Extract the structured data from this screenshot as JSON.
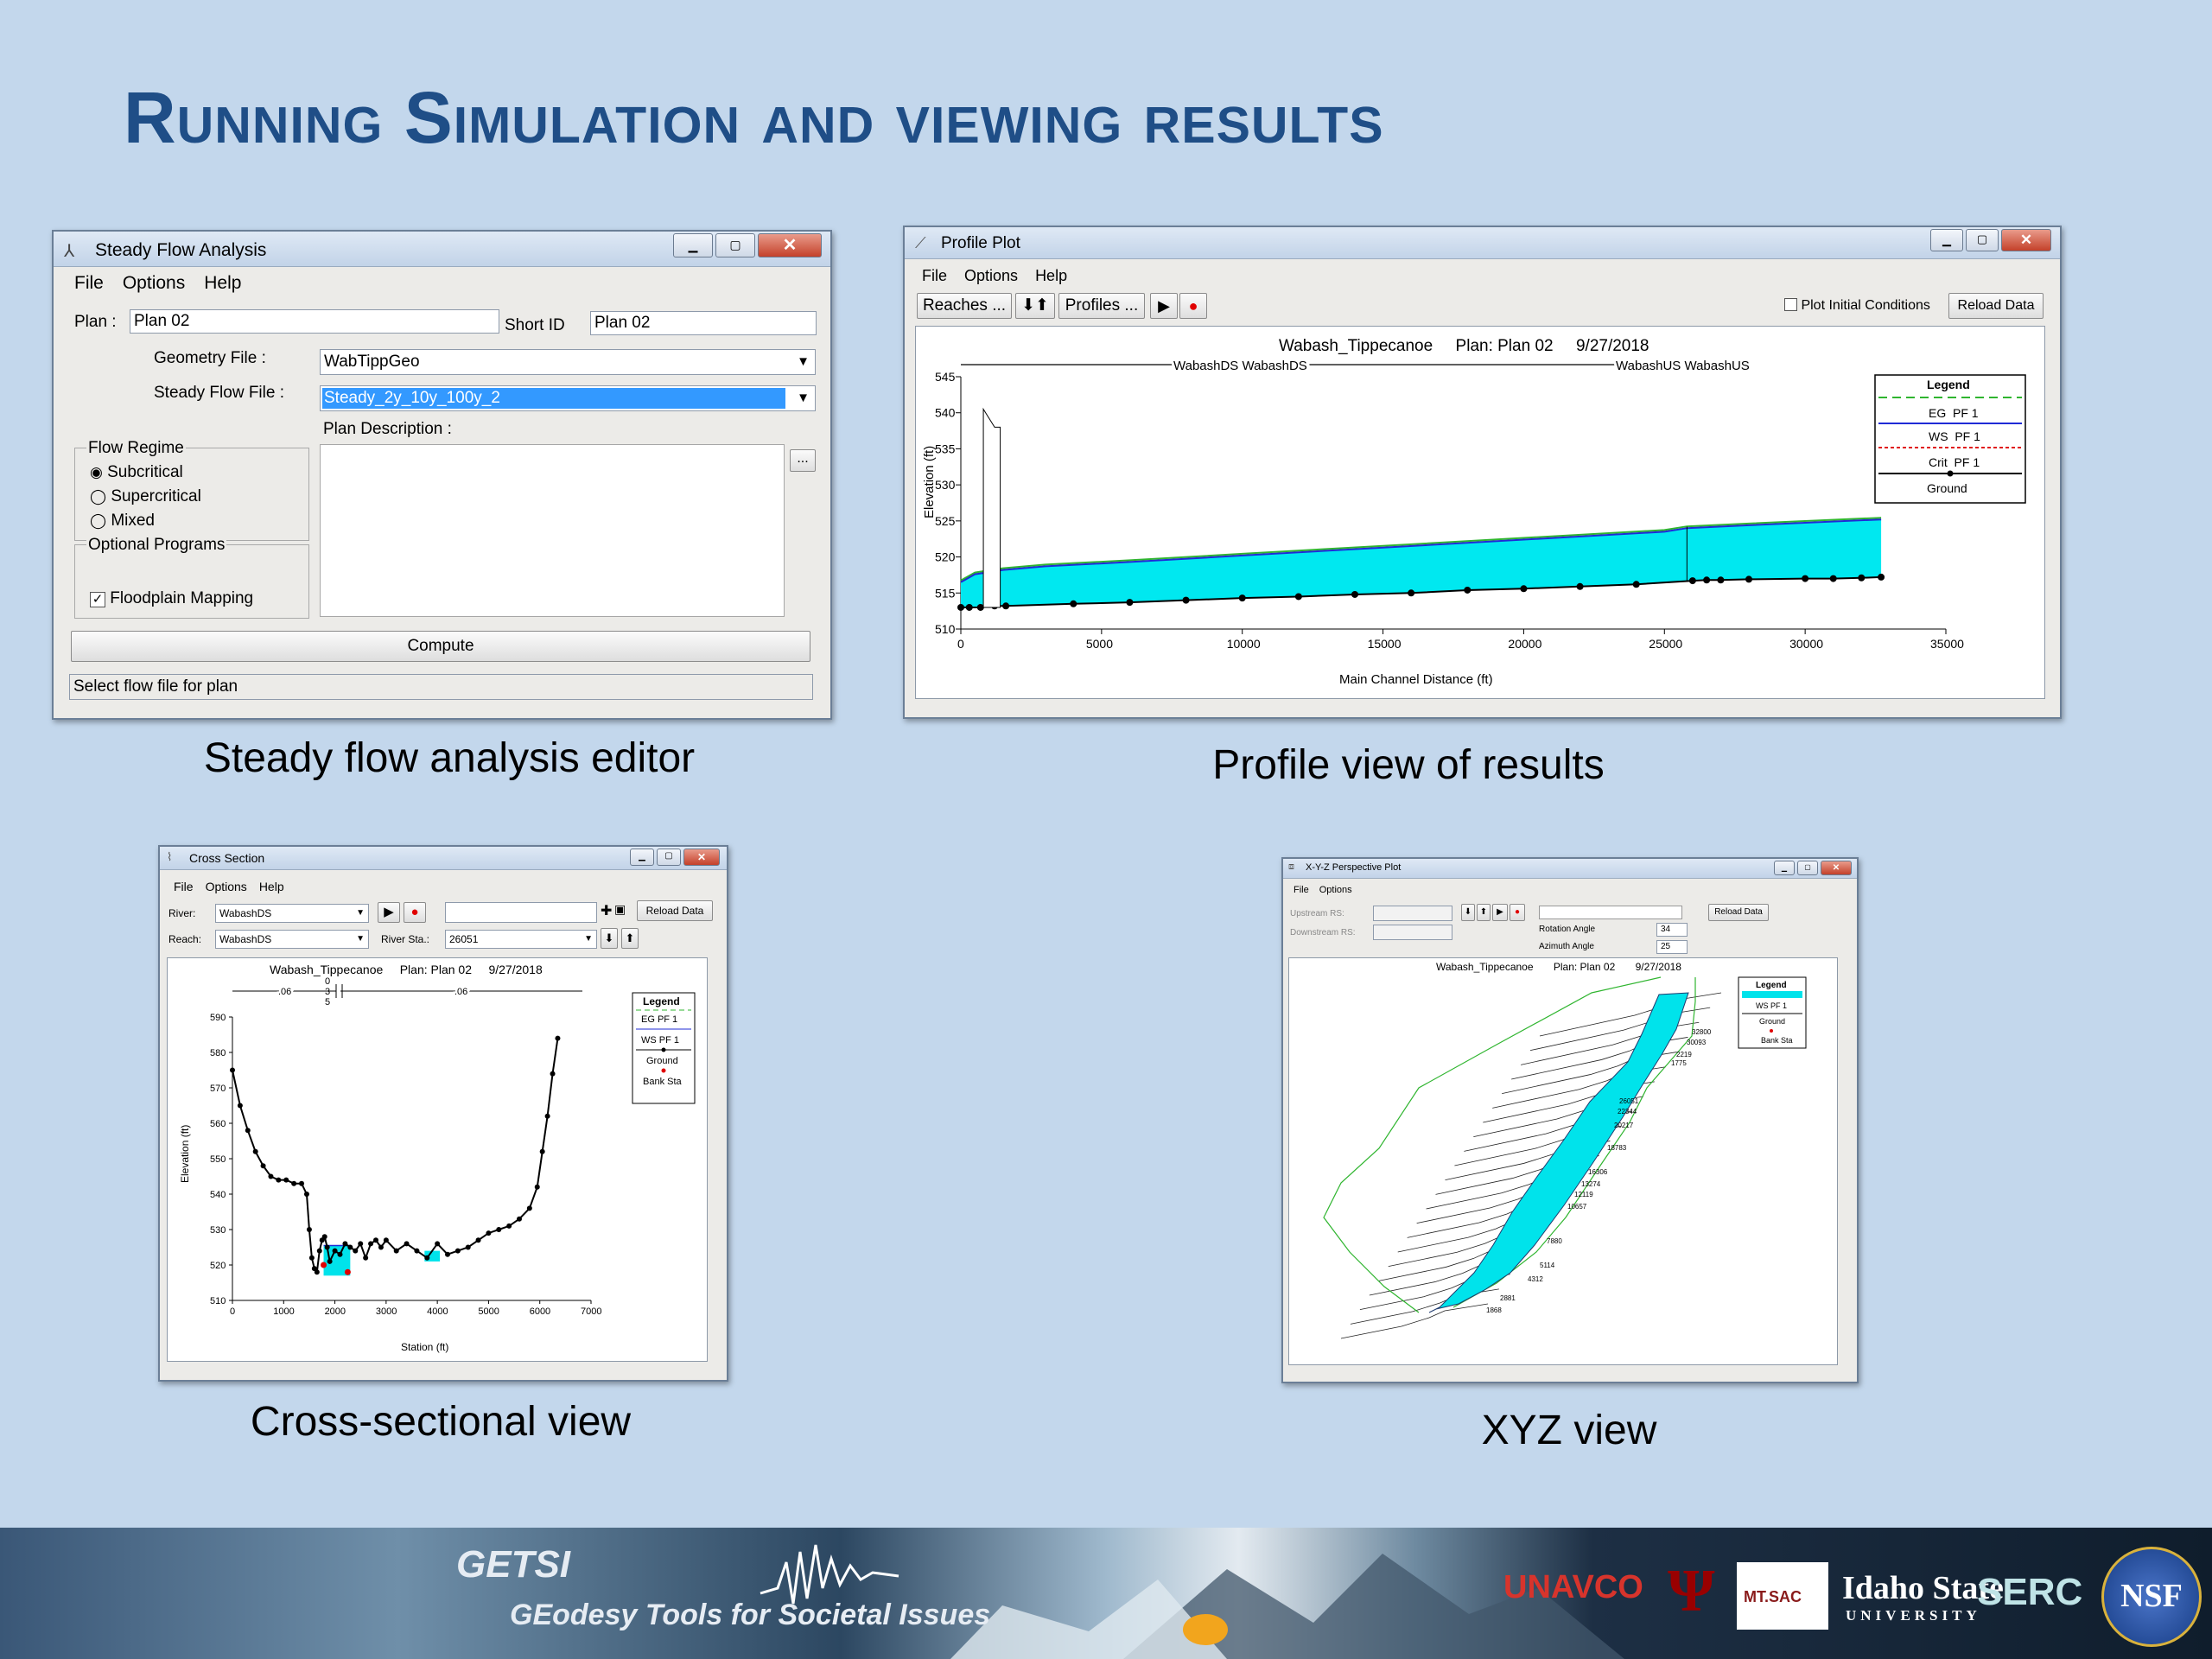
{
  "slide": {
    "title": "Running Simulation and viewing results",
    "captions": {
      "steady": "Steady flow analysis editor",
      "profile": "Profile view of results",
      "cross": "Cross-sectional view",
      "xyz": "XYZ view"
    }
  },
  "steady_window": {
    "title": "Steady Flow Analysis",
    "menu": [
      "File",
      "Options",
      "Help"
    ],
    "plan_label": "Plan :",
    "plan_value": "Plan 02",
    "short_id_label": "Short ID",
    "short_id_value": "Plan 02",
    "geometry_label": "Geometry File :",
    "geometry_value": "WabTippGeo",
    "flow_label": "Steady Flow File :",
    "flow_value": "Steady_2y_10y_100y_2",
    "plan_desc_label": "Plan Description :",
    "desc_button": "...",
    "flow_regime_label": "Flow Regime",
    "regimes": [
      "Subcritical",
      "Supercritical",
      "Mixed"
    ],
    "selected_regime": "Subcritical",
    "optional_label": "Optional Programs",
    "floodplain_label": "Floodplain Mapping",
    "floodplain_checked": true,
    "compute_label": "Compute",
    "status": "Select flow file for plan"
  },
  "profile_window": {
    "title": "Profile Plot",
    "menu": [
      "File",
      "Options",
      "Help"
    ],
    "reaches_label": "Reaches ...",
    "profiles_label": "Profiles ...",
    "initial_conditions_label": "Plot Initial Conditions",
    "reload_label": "Reload Data",
    "heading": "Wabash_Tippecanoe     Plan: Plan 02     9/27/2018",
    "reach_ds_label": "WabashDS WabashDS",
    "reach_us_label": "WabashUS WabashUS",
    "legend_title": "Legend",
    "legend_items": [
      "EG  PF 1",
      "WS  PF 1",
      "Crit  PF 1",
      "Ground"
    ],
    "colors": {
      "ws_fill": "#00e8f0",
      "eg_line": "#2fb52f",
      "ws_line": "#1f2bd6",
      "crit": "#e01b1b"
    }
  },
  "cross_window": {
    "title": "Cross Section",
    "menu": [
      "File",
      "Options",
      "Help"
    ],
    "river_label": "River:",
    "river_value": "WabashDS",
    "reach_label": "Reach:",
    "reach_value": "WabashDS",
    "river_sta_label": "River Sta.:",
    "river_sta_value": "26051",
    "reload_label": "Reload Data",
    "heading": "Wabash_Tippecanoe     Plan: Plan 02     9/27/2018",
    "manning": [
      ".06",
      "0\n3\n5",
      ".06"
    ],
    "legend_title": "Legend",
    "legend_items": [
      "EG PF 1",
      "WS PF 1",
      "Ground",
      "Bank Sta"
    ]
  },
  "xyz_window": {
    "title": "X-Y-Z Perspective Plot",
    "menu": [
      "File",
      "Options"
    ],
    "upstream_label": "Upstream RS:",
    "downstream_label": "Downstream RS:",
    "rotation_label": "Rotation Angle",
    "rotation_value": "34",
    "azimuth_label": "Azimuth Angle",
    "azimuth_value": "25",
    "reload_label": "Reload Data",
    "heading": "Wabash_Tippecanoe       Plan: Plan 02       9/27/2018",
    "legend_title": "Legend",
    "legend_items": [
      "WS PF 1",
      "Ground",
      "Bank Sta"
    ],
    "station_labels": [
      "32800",
      "30093",
      "2219",
      "1775",
      "26051",
      "22344",
      "20217",
      "18783",
      "16306",
      "13274",
      "12119",
      "10657",
      "7880",
      "5114",
      "4312",
      "2881",
      "1868"
    ]
  },
  "footer": {
    "getsi": "GETSI",
    "getsi_sub": "GEodesy Tools for Societal Issues",
    "unavco": "UNAVCO",
    "mtsac": "MT.SAC",
    "idaho": "Idaho State",
    "idaho_sub": "UNIVERSITY",
    "serc": "SERC",
    "nsf": "NSF"
  },
  "chart_data": [
    {
      "type": "area",
      "title": "Wabash_Tippecanoe     Plan: Plan 02     9/27/2018",
      "xlabel": "Main Channel Distance (ft)",
      "ylabel": "Elevation (ft)",
      "xlim": [
        0,
        35000
      ],
      "ylim": [
        510,
        545
      ],
      "xticks": [
        0,
        5000,
        10000,
        15000,
        20000,
        25000,
        30000,
        35000
      ],
      "yticks": [
        510,
        515,
        520,
        525,
        530,
        535,
        540,
        545
      ],
      "legend": "right",
      "series": [
        {
          "name": "WS  PF 1",
          "x": [
            0,
            500,
            1500,
            3000,
            6000,
            10000,
            15000,
            20000,
            25000,
            25800,
            28000,
            32700
          ],
          "y": [
            516.5,
            517.6,
            518.2,
            518.7,
            519.3,
            520.2,
            521.3,
            522.4,
            523.5,
            524.0,
            524.4,
            525.2
          ]
        },
        {
          "name": "Ground",
          "x": [
            0,
            300,
            700,
            1200,
            1600,
            4000,
            6000,
            8000,
            10000,
            12000,
            14000,
            16000,
            18000,
            20000,
            22000,
            24000,
            26000,
            26500,
            27000,
            28000,
            30000,
            31000,
            32000,
            32700
          ],
          "y": [
            513,
            513,
            513,
            513.2,
            513.2,
            513.5,
            513.7,
            514,
            514.3,
            514.5,
            514.8,
            515,
            515.4,
            515.6,
            515.9,
            516.2,
            516.7,
            516.8,
            516.8,
            516.9,
            517,
            517,
            517.1,
            517.2
          ]
        }
      ]
    },
    {
      "type": "scatter",
      "title": "Wabash_Tippecanoe     Plan: Plan 02     9/27/2018",
      "xlabel": "Station (ft)",
      "ylabel": "Elevation (ft)",
      "xlim": [
        0,
        7000
      ],
      "ylim": [
        510,
        590
      ],
      "xticks": [
        0,
        1000,
        2000,
        3000,
        4000,
        5000,
        6000,
        7000
      ],
      "yticks": [
        510,
        520,
        530,
        540,
        550,
        560,
        570,
        580,
        590
      ],
      "legend": "right",
      "series": [
        {
          "name": "Ground",
          "x": [
            0,
            150,
            300,
            450,
            600,
            750,
            900,
            1050,
            1200,
            1350,
            1450,
            1500,
            1550,
            1600,
            1650,
            1700,
            1750,
            1800,
            1850,
            1900,
            2000,
            2100,
            2200,
            2300,
            2400,
            2500,
            2600,
            2700,
            2800,
            2900,
            3000,
            3200,
            3400,
            3600,
            3800,
            4000,
            4200,
            4400,
            4600,
            4800,
            5000,
            5200,
            5400,
            5600,
            5800,
            5950,
            6050,
            6150,
            6250,
            6350
          ],
          "y": [
            575,
            565,
            558,
            552,
            548,
            545,
            544,
            544,
            543,
            543,
            540,
            530,
            522,
            519,
            518,
            524,
            527,
            528,
            525,
            521,
            524,
            523,
            526,
            525,
            524,
            526,
            522,
            526,
            527,
            525,
            527,
            524,
            526,
            524,
            522,
            526,
            523,
            524,
            525,
            527,
            529,
            530,
            531,
            533,
            536,
            542,
            552,
            562,
            574,
            584
          ]
        },
        {
          "name": "WS PF 1",
          "x": [
            1780,
            2300
          ],
          "y": [
            525.5,
            525.5
          ]
        }
      ]
    }
  ]
}
